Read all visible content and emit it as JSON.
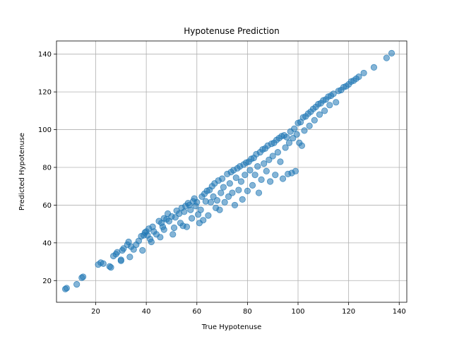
{
  "chart_data": {
    "type": "scatter",
    "title": "Hypotenuse Prediction",
    "xlabel": "True Hypotenuse",
    "ylabel": "Predicted Hypotenuse",
    "xlim": [
      4.5,
      143
    ],
    "ylim": [
      8.5,
      147
    ],
    "xticks": [
      "20",
      "40",
      "60",
      "80",
      "100",
      "120",
      "140"
    ],
    "yticks": [
      "20",
      "40",
      "60",
      "80",
      "100",
      "120",
      "140"
    ],
    "grid": true,
    "color": "#1f77b4",
    "series": [
      {
        "points": [
          [
            8,
            15.5
          ],
          [
            8.5,
            16
          ],
          [
            12.5,
            18
          ],
          [
            14.5,
            21.5
          ],
          [
            15,
            22
          ],
          [
            21,
            28.5
          ],
          [
            22,
            29.5
          ],
          [
            23,
            29
          ],
          [
            25.5,
            27.5
          ],
          [
            26,
            27
          ],
          [
            27,
            33
          ],
          [
            28,
            34
          ],
          [
            28.5,
            35
          ],
          [
            30,
            30.5
          ],
          [
            30,
            31
          ],
          [
            30.5,
            36
          ],
          [
            31,
            37
          ],
          [
            32.5,
            39
          ],
          [
            33,
            40.5
          ],
          [
            33.5,
            32.5
          ],
          [
            34,
            38
          ],
          [
            35,
            36.5
          ],
          [
            36,
            39
          ],
          [
            37,
            41
          ],
          [
            38,
            43.5
          ],
          [
            38.5,
            36
          ],
          [
            39,
            44
          ],
          [
            39.5,
            45.5
          ],
          [
            40,
            46
          ],
          [
            40.5,
            44
          ],
          [
            41,
            47.5
          ],
          [
            41.5,
            42
          ],
          [
            42,
            40.5
          ],
          [
            42.5,
            48.5
          ],
          [
            43,
            46
          ],
          [
            44,
            44.5
          ],
          [
            45,
            51.5
          ],
          [
            45.5,
            43
          ],
          [
            46,
            50.5
          ],
          [
            46.5,
            48.5
          ],
          [
            47,
            53
          ],
          [
            47,
            47
          ],
          [
            48,
            52.5
          ],
          [
            48.5,
            55.5
          ],
          [
            49,
            51.5
          ],
          [
            50,
            54
          ],
          [
            50.5,
            44.5
          ],
          [
            51,
            48
          ],
          [
            51.5,
            53.5
          ],
          [
            52,
            57
          ],
          [
            53,
            55.5
          ],
          [
            53.5,
            50.5
          ],
          [
            54,
            58.5
          ],
          [
            54.5,
            49
          ],
          [
            55,
            56.5
          ],
          [
            55.5,
            59.5
          ],
          [
            56,
            48.5
          ],
          [
            56.5,
            61
          ],
          [
            57,
            60
          ],
          [
            57.5,
            57.5
          ],
          [
            58,
            53
          ],
          [
            58.5,
            62
          ],
          [
            59,
            63.5
          ],
          [
            59.5,
            59.5
          ],
          [
            60,
            61.5
          ],
          [
            60.5,
            55
          ],
          [
            61,
            50.5
          ],
          [
            61.5,
            57.5
          ],
          [
            62,
            64.5
          ],
          [
            62.5,
            52
          ],
          [
            63,
            66
          ],
          [
            63.5,
            62
          ],
          [
            64,
            67.5
          ],
          [
            64.5,
            54.5
          ],
          [
            65,
            68
          ],
          [
            65.5,
            61.5
          ],
          [
            66,
            70
          ],
          [
            66.5,
            64.5
          ],
          [
            67,
            71.5
          ],
          [
            67.5,
            58.5
          ],
          [
            68,
            62.5
          ],
          [
            68.5,
            73
          ],
          [
            69,
            57.5
          ],
          [
            69.5,
            66.5
          ],
          [
            70,
            74
          ],
          [
            70.5,
            69.5
          ],
          [
            71,
            61.5
          ],
          [
            72,
            76.5
          ],
          [
            72.5,
            64.5
          ],
          [
            73,
            71.5
          ],
          [
            73.5,
            77.5
          ],
          [
            74,
            66.5
          ],
          [
            74.5,
            78.5
          ],
          [
            75,
            60
          ],
          [
            75.5,
            74.5
          ],
          [
            76,
            79.5
          ],
          [
            76.5,
            68
          ],
          [
            77,
            80.5
          ],
          [
            77.5,
            72.5
          ],
          [
            78,
            63
          ],
          [
            78.5,
            81.5
          ],
          [
            79,
            76
          ],
          [
            79.5,
            82.5
          ],
          [
            80,
            67.5
          ],
          [
            80.5,
            83
          ],
          [
            81,
            78.5
          ],
          [
            81.5,
            84.5
          ],
          [
            82,
            70.5
          ],
          [
            82.5,
            85
          ],
          [
            83,
            76
          ],
          [
            83.5,
            87
          ],
          [
            84,
            80.5
          ],
          [
            84.5,
            66.5
          ],
          [
            85,
            88
          ],
          [
            85.5,
            73.5
          ],
          [
            86,
            89.5
          ],
          [
            86.5,
            82
          ],
          [
            87,
            90
          ],
          [
            87.5,
            78
          ],
          [
            88,
            91.5
          ],
          [
            88.5,
            84
          ],
          [
            89,
            72.5
          ],
          [
            89.5,
            92.5
          ],
          [
            90,
            86
          ],
          [
            90.5,
            93
          ],
          [
            91,
            76
          ],
          [
            91.5,
            94.5
          ],
          [
            92,
            88
          ],
          [
            92.5,
            95.5
          ],
          [
            93,
            83
          ],
          [
            93.5,
            96.5
          ],
          [
            94,
            74
          ],
          [
            94.5,
            97
          ],
          [
            95,
            90.5
          ],
          [
            95.5,
            96
          ],
          [
            96,
            76.5
          ],
          [
            96.5,
            93
          ],
          [
            97,
            99
          ],
          [
            97.5,
            77
          ],
          [
            98,
            95.5
          ],
          [
            98.5,
            100.5
          ],
          [
            99,
            78
          ],
          [
            99.5,
            97.5
          ],
          [
            100,
            103.5
          ],
          [
            100.5,
            93
          ],
          [
            101,
            104
          ],
          [
            101.5,
            91.5
          ],
          [
            102,
            106.5
          ],
          [
            102.5,
            99.5
          ],
          [
            103,
            107
          ],
          [
            104,
            108.5
          ],
          [
            104.5,
            102
          ],
          [
            105,
            109.5
          ],
          [
            106,
            111
          ],
          [
            106.5,
            105
          ],
          [
            107,
            112
          ],
          [
            108,
            113.5
          ],
          [
            108.5,
            108
          ],
          [
            109,
            114
          ],
          [
            110,
            115.5
          ],
          [
            110.5,
            110
          ],
          [
            111,
            116
          ],
          [
            112,
            117.5
          ],
          [
            112.5,
            113
          ],
          [
            113,
            118
          ],
          [
            114,
            119
          ],
          [
            115,
            114.5
          ],
          [
            116,
            120.5
          ],
          [
            117,
            121
          ],
          [
            118,
            122.5
          ],
          [
            119,
            123
          ],
          [
            120,
            124
          ],
          [
            121,
            125.5
          ],
          [
            122,
            126
          ],
          [
            123,
            127
          ],
          [
            124,
            128
          ],
          [
            126,
            130
          ],
          [
            130,
            133
          ],
          [
            135,
            138
          ],
          [
            137,
            140.5
          ]
        ]
      }
    ]
  }
}
